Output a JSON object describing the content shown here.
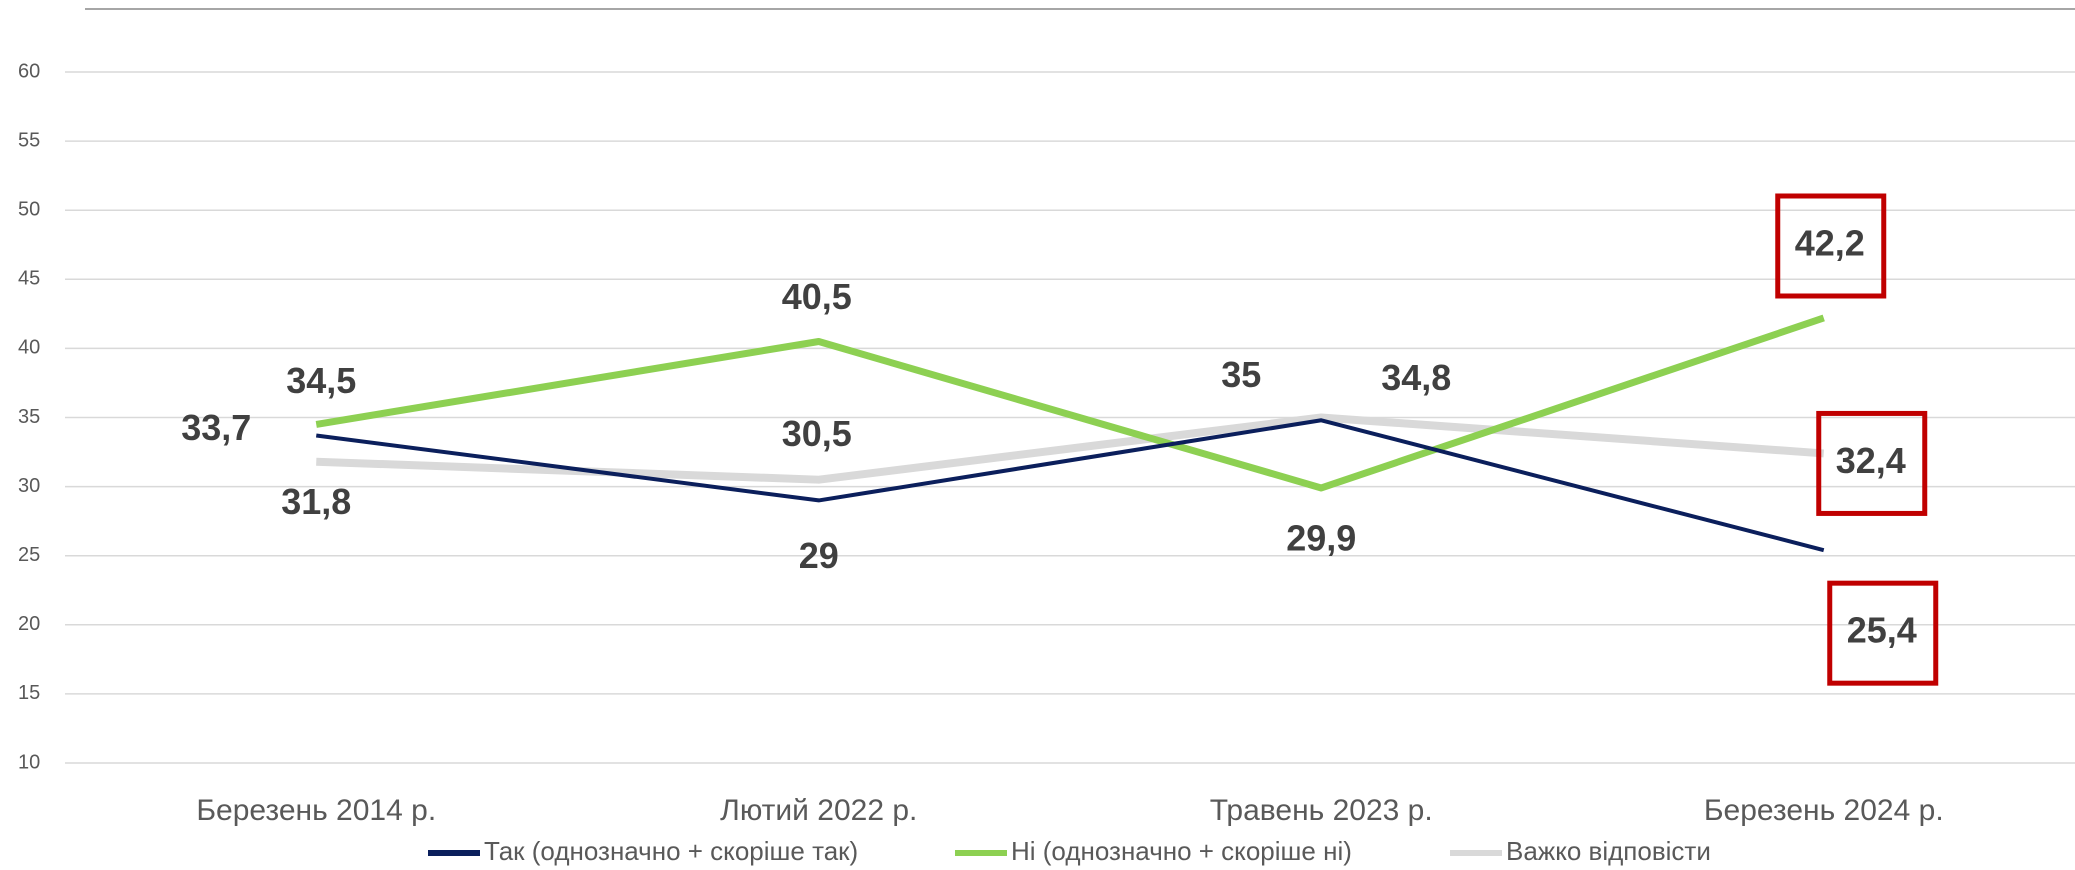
{
  "chart_data": {
    "type": "line",
    "categories": [
      "Березень 2014 р.",
      "Лютий 2022 р.",
      "Травень 2023 р.",
      "Березень 2024 р."
    ],
    "series": [
      {
        "name": "Так (однозначно + скоріше так)",
        "color": "#0b1f5c",
        "values": [
          33.7,
          29,
          34.8,
          25.4
        ],
        "value_labels": [
          "33,7",
          "29",
          "34,8",
          "25,4"
        ]
      },
      {
        "name": "Ні (однозначно + скоріше ні)",
        "color": "#8dd052",
        "values": [
          34.5,
          40.5,
          29.9,
          42.2
        ],
        "value_labels": [
          "34,5",
          "40,5",
          "29,9",
          "42,2"
        ]
      },
      {
        "name": "Важко відповісти",
        "color": "#d9d9d9",
        "values": [
          31.8,
          30.5,
          35,
          32.4
        ],
        "value_labels": [
          "31,8",
          "30,5",
          "35",
          "32,4"
        ]
      }
    ],
    "ylim": [
      10,
      60
    ],
    "yticks": [
      10,
      15,
      20,
      25,
      30,
      35,
      40,
      45,
      50,
      55,
      60
    ],
    "grid": true,
    "legend": "bottom"
  }
}
